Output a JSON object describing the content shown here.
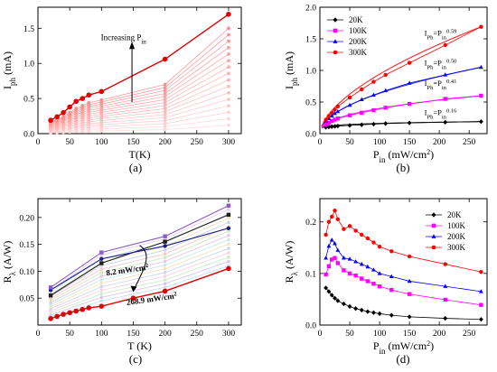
{
  "panels": [
    {
      "id": "a",
      "label": "(a)",
      "type": "line",
      "xlabel": "T(K)",
      "ylabel_main": "I",
      "ylabel_sub": "ph",
      "ylabel_unit": " (mA)",
      "xlim": [
        0,
        320
      ],
      "ylim": [
        0,
        1.8
      ],
      "xticks": [
        0,
        50,
        100,
        150,
        200,
        250,
        300
      ],
      "yticks": [
        0.0,
        0.5,
        1.0,
        1.5
      ],
      "ytick_labels": [
        "0.0",
        "0.5",
        "1.0",
        "1.5"
      ],
      "annotation": "Increasing P",
      "annotation_sub": "in",
      "temps": [
        20,
        30,
        40,
        50,
        60,
        70,
        80,
        100,
        200,
        300
      ],
      "highlight_values": [
        0.19,
        0.24,
        0.3,
        0.38,
        0.46,
        0.5,
        0.55,
        0.6,
        1.06,
        1.7
      ],
      "faint_top": [
        0.17,
        0.2,
        0.24,
        0.3,
        0.36,
        0.4,
        0.44,
        0.48,
        0.7,
        1.5
      ],
      "faint_levels": 16
    },
    {
      "id": "b",
      "label": "(b)",
      "type": "scatter",
      "xlabel_main": "P",
      "xlabel_sub": "in",
      "xlabel_unit": " (mW/cm",
      "xlabel_sup": "2",
      "xlabel_close": ")",
      "ylabel_main": "I",
      "ylabel_sub": "ph",
      "ylabel_unit": " (mA)",
      "xlim": [
        0,
        280
      ],
      "ylim": [
        0,
        2.0
      ],
      "xticks": [
        0,
        50,
        100,
        150,
        200,
        250
      ],
      "yticks": [
        0.0,
        0.5,
        1.0,
        1.5,
        2.0
      ],
      "ytick_labels": [
        "0.0",
        "0.5",
        "1.0",
        "1.5",
        "2.0"
      ],
      "series": [
        {
          "name": "20K",
          "color": "#000000",
          "marker": "diamond",
          "x": [
            10,
            15,
            20,
            25,
            30,
            50,
            70,
            90,
            110,
            150,
            210,
            270
          ],
          "y": [
            0.1,
            0.105,
            0.11,
            0.115,
            0.12,
            0.13,
            0.14,
            0.15,
            0.16,
            0.17,
            0.18,
            0.19
          ],
          "exponent": "0.16"
        },
        {
          "name": "100K",
          "color": "#ff00ff",
          "marker": "square",
          "x": [
            10,
            15,
            20,
            25,
            30,
            50,
            70,
            90,
            110,
            150,
            210,
            270
          ],
          "y": [
            0.14,
            0.17,
            0.2,
            0.22,
            0.24,
            0.29,
            0.33,
            0.37,
            0.41,
            0.47,
            0.55,
            0.6
          ],
          "exponent": "0.41"
        },
        {
          "name": "200K",
          "color": "#0000ff",
          "marker": "triangle",
          "x": [
            10,
            15,
            20,
            25,
            30,
            50,
            70,
            90,
            110,
            150,
            210,
            270
          ],
          "y": [
            0.2,
            0.24,
            0.28,
            0.32,
            0.35,
            0.45,
            0.54,
            0.61,
            0.68,
            0.8,
            0.93,
            1.05
          ],
          "exponent": "0.50"
        },
        {
          "name": "300K",
          "color": "#ff0000",
          "marker": "circle",
          "x": [
            10,
            15,
            20,
            25,
            30,
            50,
            70,
            90,
            110,
            150,
            210,
            270
          ],
          "y": [
            0.22,
            0.28,
            0.33,
            0.38,
            0.43,
            0.57,
            0.7,
            0.82,
            0.93,
            1.12,
            1.4,
            1.69
          ],
          "exponent": "0.59"
        }
      ],
      "fit_label_main": "I",
      "fit_label_sub1": "Ph",
      "fit_label_mid": "=P",
      "fit_label_sub2": "in",
      "legend_position": "top-left"
    },
    {
      "id": "c",
      "label": "(c)",
      "type": "line",
      "xlabel": "T (K)",
      "ylabel_main": "R",
      "ylabel_sub": "λ",
      "ylabel_unit": " (A/W)",
      "xlim": [
        0,
        320
      ],
      "ylim": [
        0,
        0.235
      ],
      "xticks": [
        0,
        50,
        100,
        150,
        200,
        250,
        300
      ],
      "yticks": [
        0.05,
        0.1,
        0.15,
        0.2
      ],
      "ytick_labels": [
        "0.05",
        "0.10",
        "0.15",
        "0.20"
      ],
      "annotation_top": "8.2 mW/cm",
      "annotation_top_sup": "2",
      "annotation_bottom": "268.9 mW/cm",
      "annotation_bottom_sup": "2",
      "temps": [
        20,
        100,
        200,
        300
      ],
      "red_curve": [
        0.012,
        0.035,
        0.063,
        0.105
      ],
      "purple_curve": [
        0.07,
        0.135,
        0.165,
        0.222
      ],
      "navy_curve": [
        0.065,
        0.123,
        0.147,
        0.18
      ],
      "black_curve": [
        0.055,
        0.115,
        0.155,
        0.205
      ],
      "faint_top": [
        0.065,
        0.13,
        0.16,
        0.215
      ],
      "faint_bottom": [
        0.015,
        0.045,
        0.07,
        0.11
      ],
      "faint_levels": 14
    },
    {
      "id": "d",
      "label": "(d)",
      "type": "line",
      "xlabel_main": "P",
      "xlabel_sub": "in",
      "xlabel_unit": " (mW/cm",
      "xlabel_sup": "2",
      "xlabel_close": ")",
      "ylabel_main": "R",
      "ylabel_sub": "λ",
      "ylabel_unit": " (A/W)",
      "xlim": [
        0,
        280
      ],
      "ylim": [
        0,
        0.245
      ],
      "xticks": [
        0,
        50,
        100,
        150,
        200,
        250
      ],
      "yticks": [
        0.0,
        0.1,
        0.2
      ],
      "ytick_labels": [
        "0.0",
        "0.1",
        "0.2"
      ],
      "series": [
        {
          "name": "20K",
          "color": "#000000",
          "marker": "diamond",
          "x": [
            10,
            15,
            20,
            25,
            30,
            40,
            50,
            60,
            70,
            80,
            90,
            100,
            120,
            150,
            210,
            270
          ],
          "y": [
            0.072,
            0.065,
            0.058,
            0.052,
            0.047,
            0.041,
            0.036,
            0.032,
            0.029,
            0.026,
            0.024,
            0.022,
            0.019,
            0.016,
            0.013,
            0.011
          ]
        },
        {
          "name": "100K",
          "color": "#ff00ff",
          "marker": "square",
          "x": [
            10,
            15,
            20,
            25,
            30,
            40,
            50,
            60,
            70,
            80,
            90,
            100,
            120,
            150,
            210,
            270
          ],
          "y": [
            0.098,
            0.114,
            0.127,
            0.13,
            0.12,
            0.106,
            0.1,
            0.096,
            0.09,
            0.085,
            0.08,
            0.075,
            0.068,
            0.06,
            0.049,
            0.039
          ]
        },
        {
          "name": "200K",
          "color": "#0000ff",
          "marker": "triangle",
          "x": [
            10,
            15,
            20,
            25,
            30,
            40,
            50,
            60,
            70,
            80,
            90,
            100,
            120,
            150,
            210,
            270
          ],
          "y": [
            0.13,
            0.153,
            0.165,
            0.158,
            0.145,
            0.13,
            0.128,
            0.123,
            0.118,
            0.113,
            0.107,
            0.1,
            0.094,
            0.085,
            0.075,
            0.065
          ]
        },
        {
          "name": "300K",
          "color": "#ff0000",
          "marker": "circle",
          "x": [
            10,
            15,
            20,
            25,
            30,
            40,
            50,
            60,
            70,
            80,
            90,
            100,
            120,
            150,
            210,
            270
          ],
          "y": [
            0.175,
            0.2,
            0.21,
            0.222,
            0.205,
            0.186,
            0.192,
            0.183,
            0.175,
            0.168,
            0.16,
            0.152,
            0.143,
            0.133,
            0.118,
            0.103
          ]
        }
      ],
      "legend_position": "top-right"
    }
  ]
}
